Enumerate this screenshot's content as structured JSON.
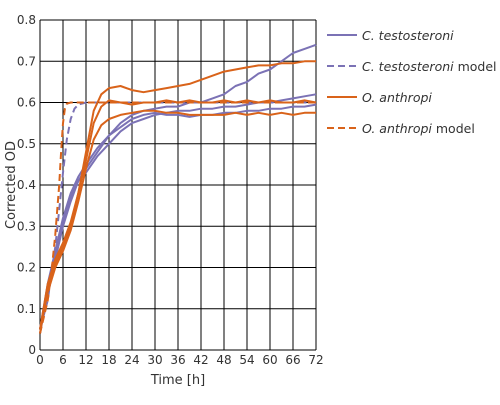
{
  "chart_data": {
    "type": "line",
    "xlabel": "Time [h]",
    "ylabel": "Corrected OD",
    "xlim": [
      0,
      72
    ],
    "ylim": [
      0,
      0.8
    ],
    "x_ticks": [
      0,
      6,
      12,
      18,
      24,
      30,
      36,
      42,
      48,
      54,
      60,
      66,
      72
    ],
    "y_ticks": [
      0,
      0.1,
      0.2,
      0.3,
      0.4,
      0.5,
      0.6,
      0.7,
      0.8
    ],
    "grid": true,
    "legend_position": "right",
    "colors": {
      "c_testosteroni": "#7b72b5",
      "o_anthropi": "#d9631a"
    },
    "legend": [
      {
        "italic": "C. testosteroni",
        "suffix": "",
        "series_key": "c_testosteroni",
        "dashed": false
      },
      {
        "italic": "C. testosteroni",
        "suffix": " model",
        "series_key": "c_testosteroni",
        "dashed": true
      },
      {
        "italic": "O. anthropi",
        "suffix": "",
        "series_key": "o_anthropi",
        "dashed": false
      },
      {
        "italic": "O. anthropi",
        "suffix": " model",
        "series_key": "o_anthropi",
        "dashed": true
      }
    ],
    "series": [
      {
        "name": "C. testosteroni",
        "series_key": "c_testosteroni",
        "dashed": false,
        "replicate": 1,
        "x": [
          0,
          2,
          4,
          6,
          8,
          10,
          12,
          15,
          18,
          21,
          24,
          27,
          30,
          33,
          36,
          39,
          42,
          45,
          48,
          51,
          54,
          57,
          60,
          63,
          66,
          69,
          72
        ],
        "y": [
          0.04,
          0.14,
          0.22,
          0.3,
          0.36,
          0.41,
          0.44,
          0.48,
          0.52,
          0.55,
          0.57,
          0.58,
          0.585,
          0.59,
          0.59,
          0.6,
          0.6,
          0.61,
          0.62,
          0.64,
          0.65,
          0.67,
          0.68,
          0.7,
          0.72,
          0.73,
          0.74
        ]
      },
      {
        "name": "C. testosteroni",
        "series_key": "c_testosteroni",
        "dashed": false,
        "replicate": 2,
        "x": [
          0,
          2,
          4,
          6,
          8,
          10,
          12,
          15,
          18,
          21,
          24,
          27,
          30,
          33,
          36,
          39,
          42,
          45,
          48,
          51,
          54,
          57,
          60,
          63,
          66,
          69,
          72
        ],
        "y": [
          0.05,
          0.15,
          0.23,
          0.31,
          0.37,
          0.41,
          0.43,
          0.47,
          0.5,
          0.53,
          0.55,
          0.56,
          0.57,
          0.575,
          0.58,
          0.58,
          0.585,
          0.585,
          0.59,
          0.59,
          0.595,
          0.6,
          0.6,
          0.605,
          0.61,
          0.615,
          0.62
        ]
      },
      {
        "name": "C. testosteroni",
        "series_key": "c_testosteroni",
        "dashed": false,
        "replicate": 3,
        "x": [
          0,
          2,
          4,
          6,
          8,
          10,
          12,
          15,
          18,
          21,
          24,
          27,
          30,
          33,
          36,
          39,
          42,
          45,
          48,
          51,
          54,
          57,
          60,
          63,
          66,
          69,
          72
        ],
        "y": [
          0.05,
          0.16,
          0.24,
          0.32,
          0.38,
          0.42,
          0.45,
          0.49,
          0.52,
          0.54,
          0.56,
          0.57,
          0.575,
          0.57,
          0.57,
          0.565,
          0.57,
          0.57,
          0.575,
          0.575,
          0.58,
          0.58,
          0.585,
          0.585,
          0.59,
          0.59,
          0.595
        ]
      },
      {
        "name": "C. testosteroni model",
        "series_key": "c_testosteroni",
        "dashed": true,
        "x": [
          0,
          2,
          4,
          5,
          6,
          7,
          8,
          9,
          10,
          12,
          72
        ],
        "y": [
          0.05,
          0.12,
          0.25,
          0.34,
          0.43,
          0.51,
          0.56,
          0.585,
          0.595,
          0.6,
          0.6
        ]
      },
      {
        "name": "O. anthropi",
        "series_key": "o_anthropi",
        "dashed": false,
        "replicate": 1,
        "x": [
          0,
          2,
          4,
          6,
          8,
          10,
          12,
          14,
          16,
          18,
          21,
          24,
          27,
          30,
          33,
          36,
          39,
          42,
          45,
          48,
          51,
          54,
          57,
          60,
          63,
          66,
          69,
          72
        ],
        "y": [
          0.04,
          0.15,
          0.21,
          0.25,
          0.3,
          0.38,
          0.48,
          0.58,
          0.62,
          0.635,
          0.64,
          0.63,
          0.625,
          0.63,
          0.635,
          0.64,
          0.645,
          0.655,
          0.665,
          0.675,
          0.68,
          0.685,
          0.69,
          0.69,
          0.695,
          0.695,
          0.7,
          0.7
        ]
      },
      {
        "name": "O. anthropi",
        "series_key": "o_anthropi",
        "dashed": false,
        "replicate": 2,
        "x": [
          0,
          2,
          4,
          6,
          8,
          10,
          12,
          14,
          16,
          18,
          21,
          24,
          27,
          30,
          33,
          36,
          39,
          42,
          45,
          48,
          51,
          54,
          57,
          60,
          63,
          66,
          69,
          72
        ],
        "y": [
          0.05,
          0.16,
          0.22,
          0.26,
          0.31,
          0.38,
          0.46,
          0.55,
          0.59,
          0.605,
          0.6,
          0.595,
          0.6,
          0.6,
          0.605,
          0.6,
          0.605,
          0.6,
          0.6,
          0.605,
          0.6,
          0.605,
          0.6,
          0.605,
          0.6,
          0.6,
          0.605,
          0.6
        ]
      },
      {
        "name": "O. anthropi",
        "series_key": "o_anthropi",
        "dashed": false,
        "replicate": 3,
        "x": [
          0,
          2,
          4,
          6,
          8,
          10,
          12,
          14,
          16,
          18,
          21,
          24,
          27,
          30,
          33,
          36,
          39,
          42,
          45,
          48,
          51,
          54,
          57,
          60,
          63,
          66,
          69,
          72
        ],
        "y": [
          0.05,
          0.14,
          0.2,
          0.24,
          0.29,
          0.36,
          0.44,
          0.51,
          0.545,
          0.56,
          0.57,
          0.575,
          0.58,
          0.58,
          0.575,
          0.575,
          0.57,
          0.57,
          0.57,
          0.57,
          0.575,
          0.57,
          0.575,
          0.57,
          0.575,
          0.57,
          0.575,
          0.575
        ]
      },
      {
        "name": "O. anthropi model",
        "series_key": "o_anthropi",
        "dashed": true,
        "x": [
          0,
          2,
          3,
          4,
          5,
          5.5,
          6,
          6.5,
          7,
          8,
          72
        ],
        "y": [
          0.04,
          0.12,
          0.19,
          0.28,
          0.4,
          0.48,
          0.55,
          0.585,
          0.597,
          0.6,
          0.6
        ]
      }
    ]
  }
}
